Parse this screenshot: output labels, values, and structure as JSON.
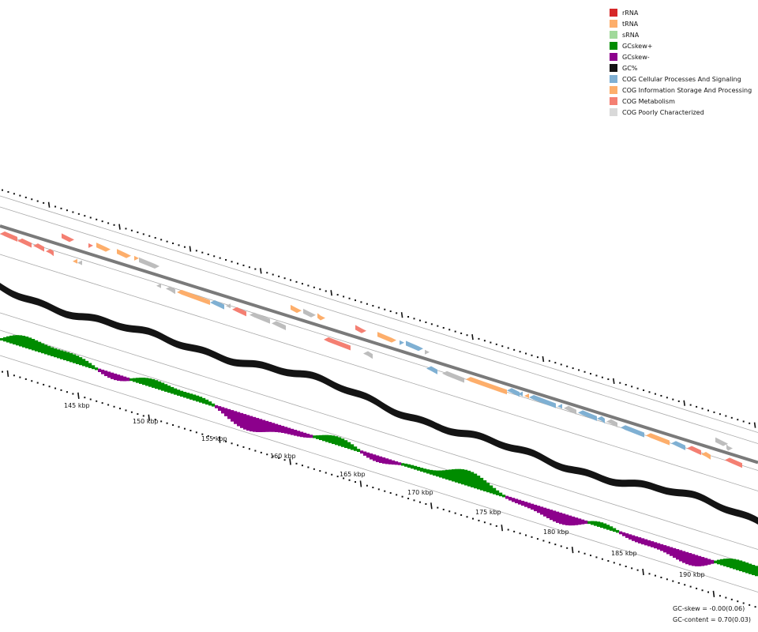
{
  "legend": [
    {
      "label": "rRNA",
      "color": "#d62728"
    },
    {
      "label": "tRNA",
      "color": "#fdae6b"
    },
    {
      "label": "sRNA",
      "color": "#a1d99b"
    },
    {
      "label": "GCskew+",
      "color": "#008c00"
    },
    {
      "label": "GCskew-",
      "color": "#8c008c"
    },
    {
      "label": "GC%",
      "color": "#141414"
    },
    {
      "label": "COG Cellular Processes And Signaling",
      "color": "#7fb0d3"
    },
    {
      "label": "COG Information Storage And Processing",
      "color": "#fdae6b"
    },
    {
      "label": "COG Metabolism",
      "color": "#f47f72"
    },
    {
      "label": "COG Poorly Characterized",
      "color": "#d9d9d9"
    }
  ],
  "stats": {
    "gc_skew": "GC-skew = -0.00(0.06)",
    "gc_content": "GC-content = 0.70(0.03)"
  },
  "axis": {
    "unit": "kbp",
    "labels": [
      "145 kbp",
      "150 kbp",
      "155 kbp",
      "160 kbp",
      "165 kbp",
      "170 kbp",
      "175 kbp",
      "180 kbp",
      "185 kbp",
      "190 kbp"
    ]
  },
  "features": {
    "strand_plus": [
      {
        "cog": "metabolism",
        "dir": 1
      },
      {
        "cog": "metabolism",
        "dir": 1
      },
      {
        "cog": "information",
        "dir": 1
      },
      {
        "cog": "information",
        "dir": 1
      },
      {
        "cog": "information",
        "dir": 1
      },
      {
        "cog": "poorly",
        "dir": 1
      },
      {
        "cog": "information",
        "dir": 1
      },
      {
        "cog": "poorly",
        "dir": 1
      },
      {
        "cog": "information",
        "dir": 1
      },
      {
        "cog": "metabolism",
        "dir": 1
      },
      {
        "cog": "information",
        "dir": 1
      },
      {
        "cog": "cellular",
        "dir": 1
      },
      {
        "cog": "cellular",
        "dir": 1
      },
      {
        "cog": "poorly",
        "dir": 1
      },
      {
        "cog": "poorly",
        "dir": 1
      },
      {
        "cog": "poorly",
        "dir": 1
      }
    ],
    "strand_minus": [
      {
        "cog": "metabolism",
        "dir": -1
      },
      {
        "cog": "metabolism",
        "dir": -1
      },
      {
        "cog": "metabolism",
        "dir": -1
      },
      {
        "cog": "metabolism",
        "dir": -1
      },
      {
        "cog": "information",
        "dir": -1
      },
      {
        "cog": "poorly",
        "dir": -1
      },
      {
        "cog": "poorly",
        "dir": -1
      },
      {
        "cog": "poorly",
        "dir": -1
      },
      {
        "cog": "information",
        "dir": -1
      },
      {
        "cog": "cellular",
        "dir": -1
      },
      {
        "cog": "poorly",
        "dir": -1
      },
      {
        "cog": "metabolism",
        "dir": -1
      },
      {
        "cog": "poorly",
        "dir": -1
      },
      {
        "cog": "poorly",
        "dir": -1
      },
      {
        "cog": "metabolism",
        "dir": -1
      },
      {
        "cog": "poorly",
        "dir": -1
      },
      {
        "cog": "cellular",
        "dir": -1
      },
      {
        "cog": "poorly",
        "dir": -1
      },
      {
        "cog": "information",
        "dir": -1
      },
      {
        "cog": "cellular",
        "dir": -1
      },
      {
        "cog": "cellular",
        "dir": -1
      },
      {
        "cog": "information",
        "dir": -1
      },
      {
        "cog": "cellular",
        "dir": -1
      },
      {
        "cog": "cellular",
        "dir": -1
      },
      {
        "cog": "poorly",
        "dir": -1
      },
      {
        "cog": "cellular",
        "dir": -1
      },
      {
        "cog": "cellular",
        "dir": -1
      },
      {
        "cog": "poorly",
        "dir": -1
      },
      {
        "cog": "cellular",
        "dir": -1
      },
      {
        "cog": "information",
        "dir": -1
      },
      {
        "cog": "cellular",
        "dir": -1
      },
      {
        "cog": "metabolism",
        "dir": -1
      },
      {
        "cog": "information",
        "dir": -1
      },
      {
        "cog": "metabolism",
        "dir": -1
      }
    ]
  }
}
